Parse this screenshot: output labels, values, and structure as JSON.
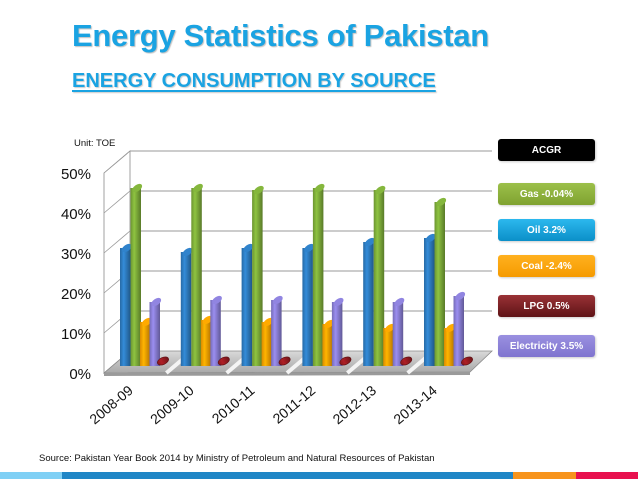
{
  "header": {
    "title": "Energy Statistics of Pakistan",
    "subtitle": "ENERGY CONSUMPTION BY SOURCE"
  },
  "unit_label": "Unit: TOE",
  "source": "Source: Pakistan Year Book 2014 by Ministry of Petroleum and Natural Resources of Pakistan",
  "legend": {
    "heading": "ACGR",
    "items": [
      {
        "label": "Gas -0.04%",
        "color": "#8db03a"
      },
      {
        "label": "Oil 3.2%",
        "color": "#12a3dc"
      },
      {
        "label": "Coal -2.4%",
        "color": "#ffa200"
      },
      {
        "label": "LPG 0.5%",
        "color": "#7d1e22"
      },
      {
        "label": "Electricity 3.5%",
        "color": "#8a7fd6"
      }
    ]
  },
  "footer_stripe_colors": [
    "#7fd0f5",
    "#1f86c6",
    "#f7941d",
    "#e8114f"
  ],
  "chart_data": {
    "type": "bar",
    "style": "3d-cylinder",
    "title": "",
    "xlabel": "",
    "ylabel": "",
    "ylim": [
      0,
      50
    ],
    "y_ticks": [
      "0%",
      "10%",
      "20%",
      "30%",
      "40%",
      "50%"
    ],
    "grid": true,
    "categories": [
      "2008-09",
      "2009-10",
      "2010-11",
      "2011-12",
      "2012-13",
      "2013-14"
    ],
    "series": [
      {
        "name": "Oil",
        "color": "#2e7dc2",
        "values": [
          29.5,
          28.5,
          29.5,
          29.5,
          31,
          32
        ]
      },
      {
        "name": "Gas",
        "color": "#7fae3a",
        "values": [
          44.5,
          44.5,
          44,
          44.5,
          44,
          41
        ]
      },
      {
        "name": "Coal",
        "color": "#ffa200",
        "values": [
          11,
          11.5,
          11,
          10.5,
          9.5,
          9.5
        ]
      },
      {
        "name": "Electricity",
        "color": "#8a7fd6",
        "values": [
          16,
          16.5,
          16.5,
          16,
          16,
          17.5
        ]
      },
      {
        "name": "LPG",
        "color": "#9c1c22",
        "values": [
          0.5,
          0.5,
          0.5,
          0.5,
          0.5,
          0.5
        ]
      }
    ]
  }
}
